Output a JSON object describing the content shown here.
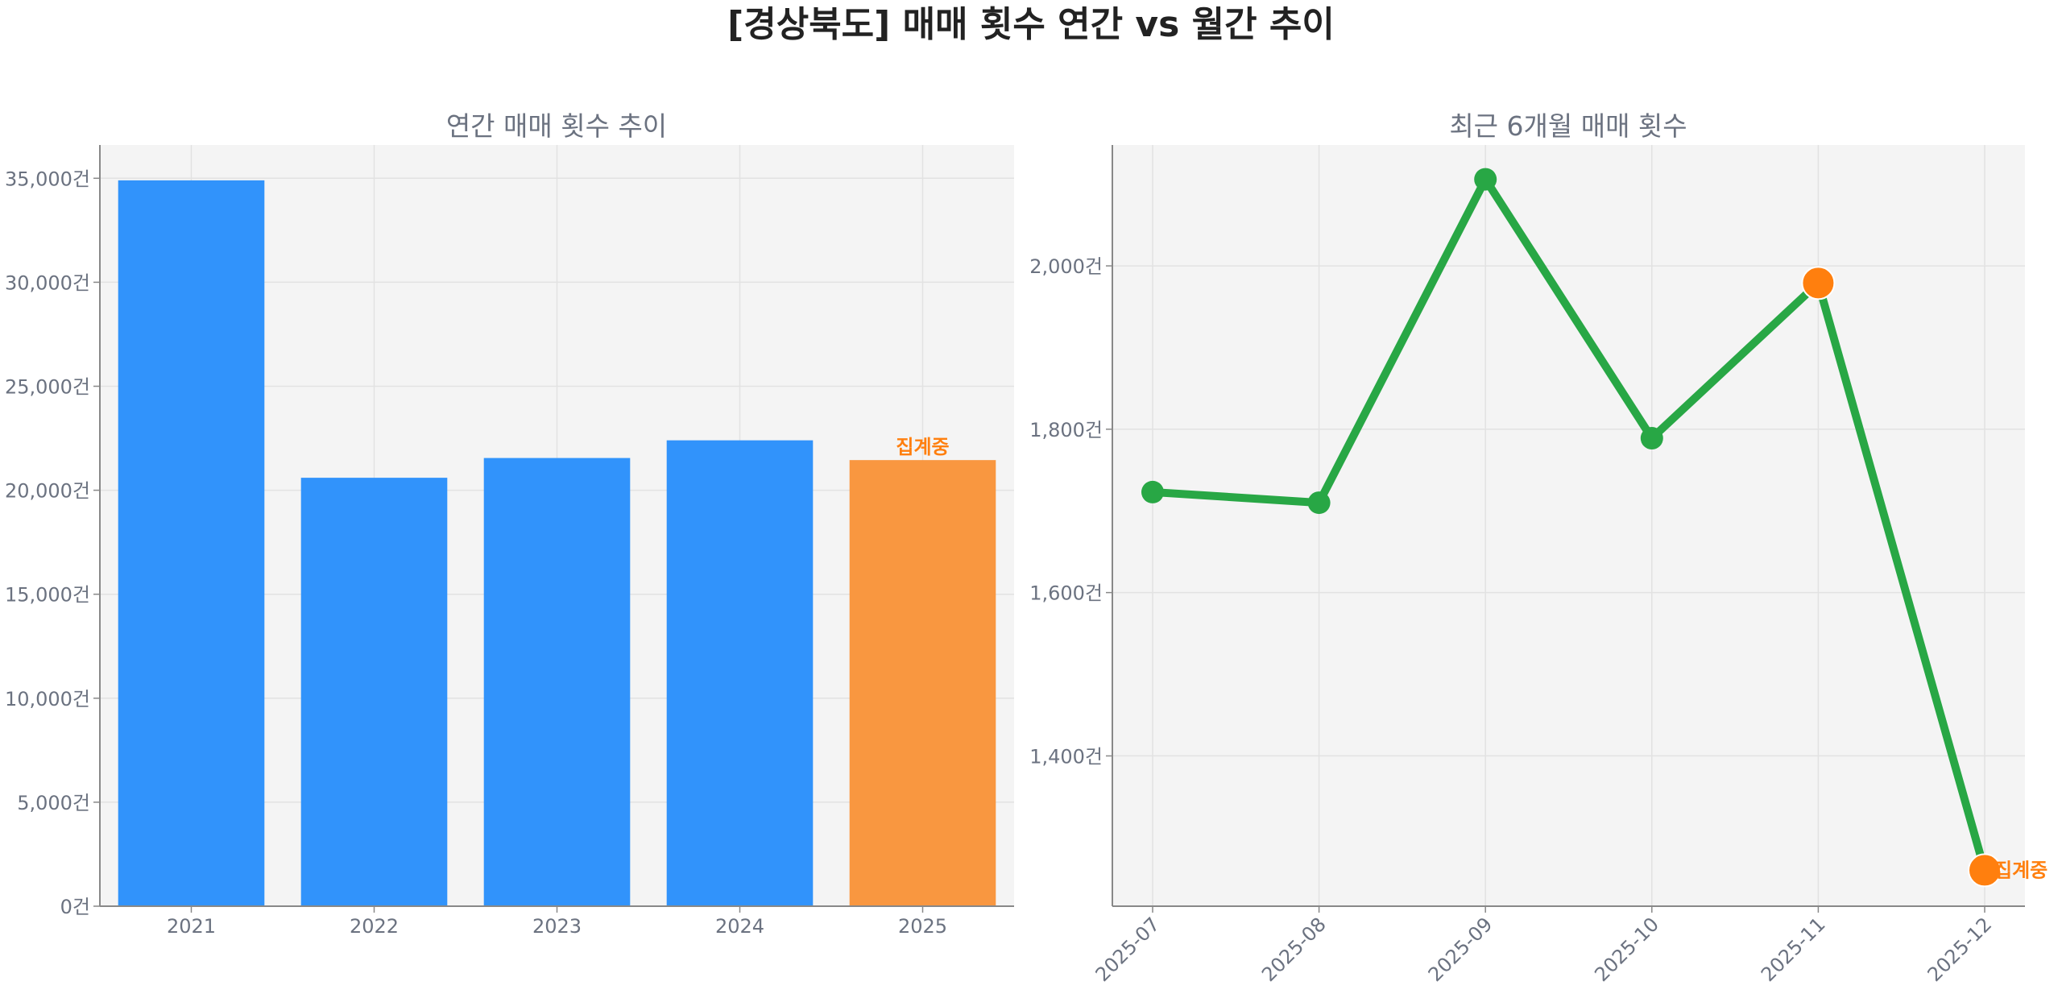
{
  "title": "[경상북도] 매매 횟수 연간 vs 월간 추이",
  "colors": {
    "bar": "#3193fb",
    "bar_current": "#f99740",
    "line": "#28a745",
    "marker_highlight": "#ff7f0e",
    "annotation": "#ff7f0e",
    "plot_bg": "#f4f4f4"
  },
  "chart_data": [
    {
      "type": "bar",
      "title": "연간 매매 횟수 추이",
      "categories": [
        "2021",
        "2022",
        "2023",
        "2024",
        "2025"
      ],
      "values": [
        34900,
        20600,
        21550,
        22400,
        21450
      ],
      "ylim": [
        0,
        36600
      ],
      "yticks": [
        0,
        5000,
        10000,
        15000,
        20000,
        25000,
        30000,
        35000
      ],
      "ytick_labels": [
        "0건",
        "5,000건",
        "10,000건",
        "15,000건",
        "20,000건",
        "25,000건",
        "30,000건",
        "35,000건"
      ],
      "grid": true,
      "annotations": [
        {
          "category": "2025",
          "text": "집계중"
        }
      ]
    },
    {
      "type": "line",
      "title": "최근 6개월 매매 횟수",
      "categories": [
        "2025-07",
        "2025-08",
        "2025-09",
        "2025-10",
        "2025-11",
        "2025-12"
      ],
      "values": [
        1723,
        1710,
        2106,
        1789,
        1979,
        1260
      ],
      "highlighted": [
        "2025-11",
        "2025-12"
      ],
      "ylim": [
        1216,
        2148
      ],
      "yticks": [
        1400,
        1600,
        1800,
        2000
      ],
      "ytick_labels": [
        "1,400건",
        "1,600건",
        "1,800건",
        "2,000건"
      ],
      "grid": true,
      "annotations": [
        {
          "category": "2025-12",
          "text": "집계중"
        }
      ]
    }
  ]
}
